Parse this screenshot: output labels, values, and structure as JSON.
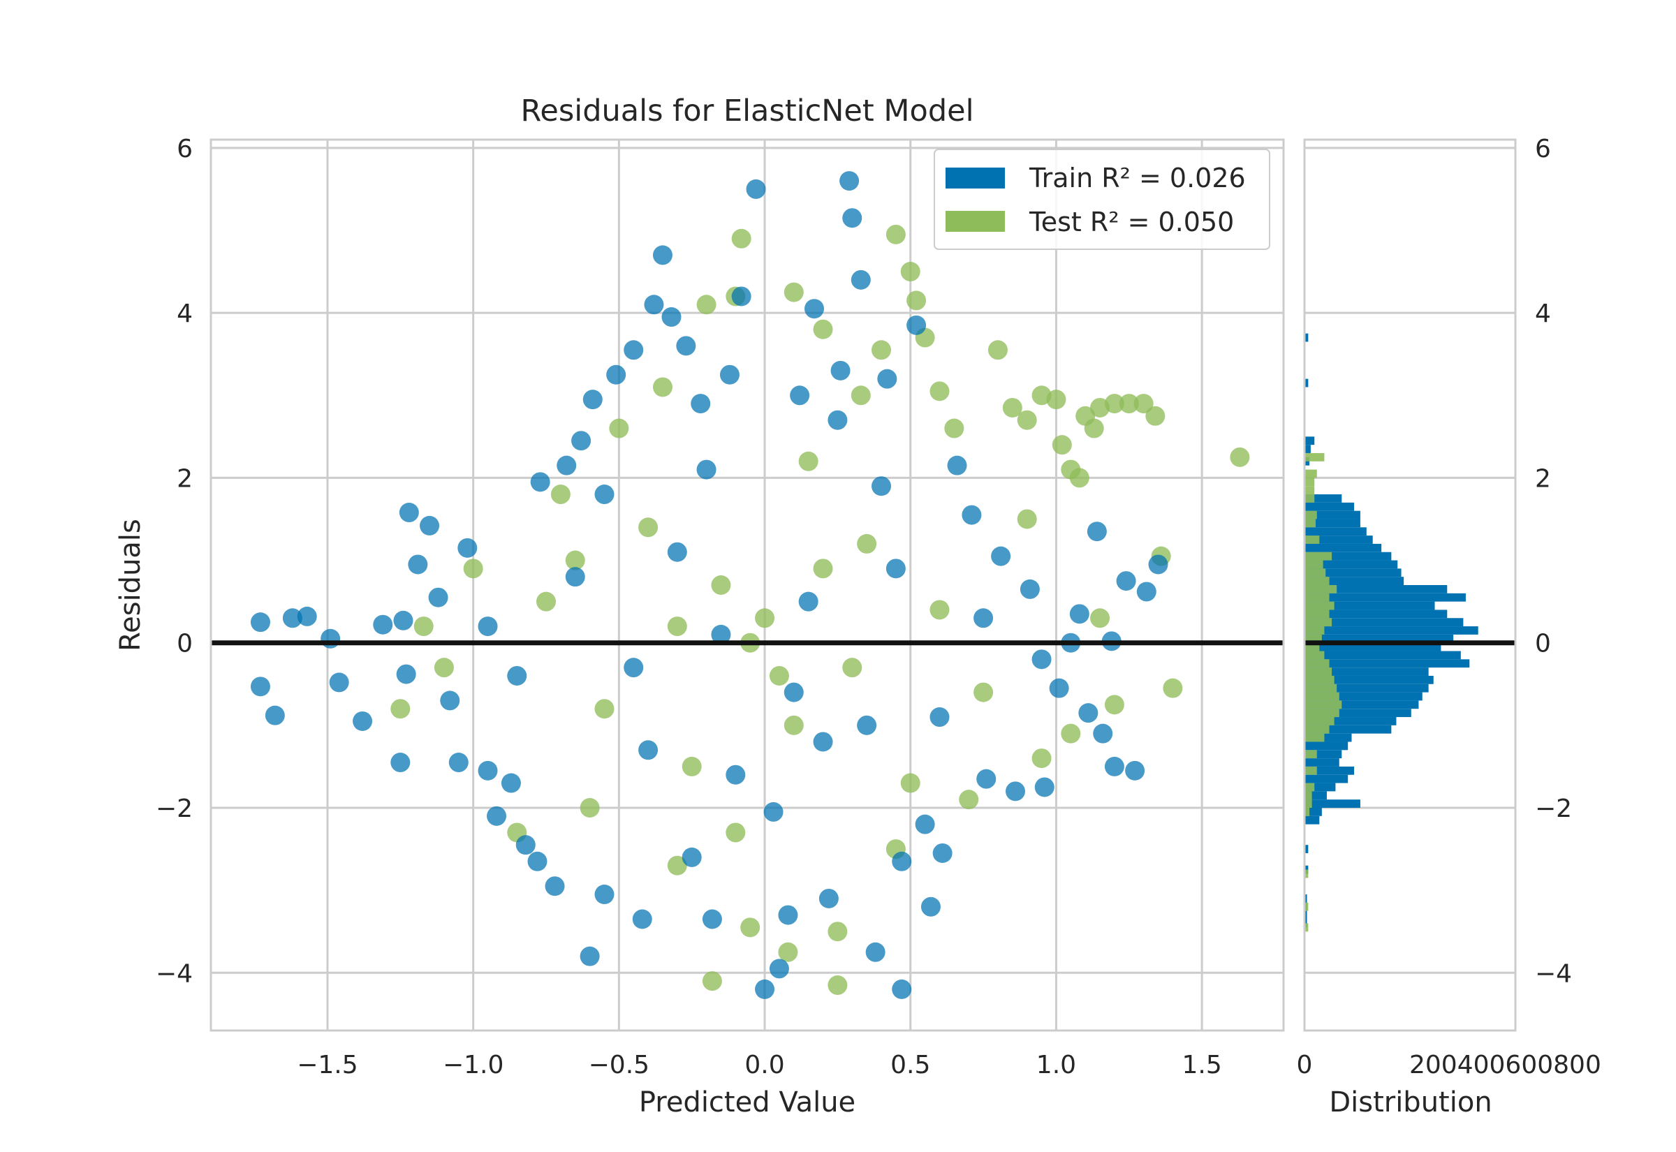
{
  "chart_data": {
    "type": "scatter",
    "title": "Residuals for ElasticNet Model",
    "xlabel": "Predicted Value",
    "ylabel": "Residuals",
    "xlim": [
      -1.9,
      1.78
    ],
    "ylim": [
      -4.7,
      6.1
    ],
    "x_ticks": [
      -1.5,
      -1.0,
      -0.5,
      0.0,
      0.5,
      1.0,
      1.5
    ],
    "x_tick_labels": [
      "−1.5",
      "−1.0",
      "−0.5",
      "0.0",
      "0.5",
      "1.0",
      "1.5"
    ],
    "y_ticks": [
      -4,
      -2,
      0,
      2,
      4,
      6
    ],
    "y_tick_labels": [
      "−4",
      "−2",
      "0",
      "2",
      "4",
      "6"
    ],
    "grid": true,
    "legend_position": "top-right",
    "reference_line_y": 0,
    "series": [
      {
        "name": "Train",
        "legend_label": "Train R² = 0.026",
        "r2": 0.026,
        "color": "#0072b2",
        "points": [
          [
            -1.73,
            0.25
          ],
          [
            -1.62,
            0.3
          ],
          [
            -1.57,
            0.32
          ],
          [
            -1.49,
            0.05
          ],
          [
            -1.46,
            -0.48
          ],
          [
            -1.38,
            -0.95
          ],
          [
            -1.31,
            0.22
          ],
          [
            -1.24,
            0.27
          ],
          [
            -1.73,
            -0.53
          ],
          [
            -1.68,
            -0.88
          ],
          [
            -1.23,
            -0.38
          ],
          [
            -1.25,
            -1.45
          ],
          [
            -1.22,
            1.58
          ],
          [
            -1.19,
            0.95
          ],
          [
            -1.15,
            1.42
          ],
          [
            -1.12,
            0.55
          ],
          [
            -1.08,
            -0.7
          ],
          [
            -1.05,
            -1.45
          ],
          [
            -1.02,
            1.15
          ],
          [
            -0.95,
            -1.55
          ],
          [
            -0.92,
            -2.1
          ],
          [
            -0.87,
            -1.7
          ],
          [
            -0.82,
            -2.45
          ],
          [
            -0.78,
            -2.65
          ],
          [
            -0.77,
            1.95
          ],
          [
            -0.72,
            -2.95
          ],
          [
            -0.68,
            2.15
          ],
          [
            -0.63,
            2.45
          ],
          [
            -0.59,
            2.95
          ],
          [
            -0.55,
            -3.05
          ],
          [
            -0.51,
            3.25
          ],
          [
            -0.45,
            3.55
          ],
          [
            -0.42,
            -3.35
          ],
          [
            -0.38,
            4.1
          ],
          [
            -0.35,
            4.7
          ],
          [
            -0.32,
            3.95
          ],
          [
            -0.27,
            3.6
          ],
          [
            -0.22,
            2.9
          ],
          [
            -0.18,
            -3.35
          ],
          [
            -0.12,
            3.25
          ],
          [
            -0.08,
            4.2
          ],
          [
            -0.03,
            5.5
          ],
          [
            0.03,
            -2.05
          ],
          [
            0.08,
            -3.3
          ],
          [
            0.12,
            3.0
          ],
          [
            0.17,
            4.05
          ],
          [
            0.22,
            -3.1
          ],
          [
            0.26,
            3.3
          ],
          [
            0.29,
            5.6
          ],
          [
            0.3,
            5.15
          ],
          [
            0.33,
            4.4
          ],
          [
            0.38,
            -3.75
          ],
          [
            0.42,
            3.2
          ],
          [
            0.47,
            -2.65
          ],
          [
            0.52,
            3.85
          ],
          [
            0.57,
            -3.2
          ],
          [
            0.61,
            -2.55
          ],
          [
            0.66,
            2.15
          ],
          [
            0.71,
            1.55
          ],
          [
            0.76,
            -1.65
          ],
          [
            0.81,
            1.05
          ],
          [
            0.86,
            -1.8
          ],
          [
            0.91,
            0.65
          ],
          [
            0.96,
            -1.75
          ],
          [
            1.01,
            -0.55
          ],
          [
            1.05,
            0.0
          ],
          [
            1.08,
            0.35
          ],
          [
            1.11,
            -0.85
          ],
          [
            1.16,
            -1.1
          ],
          [
            1.2,
            -1.5
          ],
          [
            1.24,
            0.75
          ],
          [
            1.27,
            -1.55
          ],
          [
            1.31,
            0.62
          ],
          [
            1.35,
            0.95
          ],
          [
            1.14,
            1.35
          ],
          [
            1.19,
            0.02
          ],
          [
            -0.6,
            -3.8
          ],
          [
            -0.2,
            2.1
          ],
          [
            0.05,
            -3.95
          ],
          [
            0.2,
            -1.2
          ],
          [
            -0.3,
            1.1
          ],
          [
            0.35,
            -1.0
          ],
          [
            -0.45,
            -0.3
          ],
          [
            0.15,
            0.5
          ],
          [
            -0.1,
            -1.6
          ],
          [
            0.4,
            1.9
          ],
          [
            -0.65,
            0.8
          ],
          [
            0.6,
            -0.9
          ],
          [
            -0.85,
            -0.4
          ],
          [
            0.75,
            0.3
          ],
          [
            -0.25,
            -2.6
          ],
          [
            0.25,
            2.7
          ],
          [
            -0.55,
            1.8
          ],
          [
            0.55,
            -2.2
          ],
          [
            -0.95,
            0.2
          ],
          [
            0.95,
            -0.2
          ],
          [
            -0.15,
            0.1
          ],
          [
            0.1,
            -0.6
          ],
          [
            -0.4,
            -1.3
          ],
          [
            0.45,
            0.9
          ],
          [
            0.0,
            -4.2
          ],
          [
            0.47,
            -4.2
          ]
        ]
      },
      {
        "name": "Test",
        "legend_label": "Test R² = 0.050",
        "r2": 0.05,
        "color": "#8fbc5a",
        "points": [
          [
            -1.25,
            -0.8
          ],
          [
            -1.17,
            0.2
          ],
          [
            -1.1,
            -0.3
          ],
          [
            -1.0,
            0.9
          ],
          [
            -0.85,
            -2.3
          ],
          [
            -0.7,
            1.8
          ],
          [
            -0.5,
            2.6
          ],
          [
            -0.35,
            3.1
          ],
          [
            -0.2,
            4.1
          ],
          [
            -0.1,
            4.2
          ],
          [
            -0.08,
            4.9
          ],
          [
            0.1,
            4.25
          ],
          [
            0.2,
            3.8
          ],
          [
            0.33,
            3.0
          ],
          [
            0.4,
            3.55
          ],
          [
            0.45,
            4.95
          ],
          [
            0.5,
            4.5
          ],
          [
            0.52,
            4.15
          ],
          [
            0.55,
            3.7
          ],
          [
            0.6,
            3.05
          ],
          [
            0.65,
            2.6
          ],
          [
            0.8,
            3.55
          ],
          [
            0.85,
            2.85
          ],
          [
            0.9,
            2.7
          ],
          [
            0.95,
            3.0
          ],
          [
            1.0,
            2.95
          ],
          [
            1.02,
            2.4
          ],
          [
            1.05,
            2.1
          ],
          [
            1.08,
            2.0
          ],
          [
            1.1,
            2.75
          ],
          [
            1.13,
            2.6
          ],
          [
            1.15,
            2.85
          ],
          [
            1.2,
            2.9
          ],
          [
            1.25,
            2.9
          ],
          [
            1.3,
            2.9
          ],
          [
            1.34,
            2.75
          ],
          [
            1.63,
            2.25
          ],
          [
            1.4,
            -0.55
          ],
          [
            1.36,
            1.05
          ],
          [
            1.2,
            -0.75
          ],
          [
            1.15,
            0.3
          ],
          [
            1.05,
            -1.1
          ],
          [
            0.95,
            -1.4
          ],
          [
            0.9,
            1.5
          ],
          [
            0.7,
            -1.9
          ],
          [
            0.45,
            -2.5
          ],
          [
            0.25,
            -3.5
          ],
          [
            0.08,
            -3.75
          ],
          [
            -0.18,
            -4.1
          ],
          [
            0.25,
            -4.15
          ],
          [
            -0.05,
            -3.45
          ],
          [
            -0.3,
            -2.7
          ],
          [
            -0.6,
            -2.0
          ],
          [
            -0.75,
            0.5
          ],
          [
            0.0,
            0.3
          ],
          [
            0.05,
            -0.4
          ],
          [
            -0.05,
            0.0
          ],
          [
            0.1,
            -1.0
          ],
          [
            -0.15,
            0.7
          ],
          [
            0.3,
            -0.3
          ],
          [
            -0.4,
            1.4
          ],
          [
            0.35,
            1.2
          ],
          [
            -0.25,
            -1.5
          ],
          [
            0.6,
            0.4
          ],
          [
            -0.55,
            -0.8
          ],
          [
            0.75,
            -0.6
          ],
          [
            0.15,
            2.2
          ],
          [
            -0.1,
            -2.3
          ],
          [
            0.5,
            -1.7
          ],
          [
            -0.65,
            1.0
          ],
          [
            0.2,
            0.9
          ],
          [
            -0.3,
            0.2
          ]
        ]
      }
    ],
    "distribution": {
      "xlabel": "Distribution",
      "x_tick_labels": [
        "0",
        "0"
      ],
      "x_tick_overlap_text": "200400600800",
      "y_ticks": [
        -4,
        -2,
        0,
        2,
        4,
        6
      ],
      "y_tick_labels": [
        "−4",
        "−2",
        "0",
        "2",
        "4",
        "6"
      ],
      "bin_width": 0.1,
      "train_bins": [
        [
          3.7,
          3
        ],
        [
          3.15,
          3
        ],
        [
          2.45,
          8
        ],
        [
          2.35,
          5
        ],
        [
          2.2,
          4
        ],
        [
          1.75,
          30
        ],
        [
          1.65,
          40
        ],
        [
          1.55,
          45
        ],
        [
          1.45,
          45
        ],
        [
          1.35,
          50
        ],
        [
          1.25,
          55
        ],
        [
          1.15,
          62
        ],
        [
          1.05,
          70
        ],
        [
          0.95,
          75
        ],
        [
          0.85,
          78
        ],
        [
          0.75,
          80
        ],
        [
          0.65,
          115
        ],
        [
          0.55,
          130
        ],
        [
          0.45,
          105
        ],
        [
          0.35,
          115
        ],
        [
          0.25,
          128
        ],
        [
          0.15,
          140
        ],
        [
          0.05,
          120
        ],
        [
          -0.05,
          110
        ],
        [
          -0.15,
          126
        ],
        [
          -0.25,
          133
        ],
        [
          -0.35,
          100
        ],
        [
          -0.45,
          104
        ],
        [
          -0.55,
          100
        ],
        [
          -0.65,
          95
        ],
        [
          -0.75,
          92
        ],
        [
          -0.85,
          86
        ],
        [
          -0.95,
          74
        ],
        [
          -1.05,
          70
        ],
        [
          -1.15,
          38
        ],
        [
          -1.25,
          35
        ],
        [
          -1.35,
          30
        ],
        [
          -1.45,
          28
        ],
        [
          -1.55,
          40
        ],
        [
          -1.65,
          35
        ],
        [
          -1.75,
          25
        ],
        [
          -1.85,
          18
        ],
        [
          -1.95,
          45
        ],
        [
          -2.05,
          14
        ],
        [
          -2.15,
          12
        ],
        [
          -2.5,
          3
        ],
        [
          -2.75,
          3
        ],
        [
          -3.1,
          2
        ],
        [
          -3.2,
          2
        ],
        [
          -3.3,
          2
        ],
        [
          -3.4,
          2
        ]
      ],
      "test_bins": [
        [
          2.25,
          16
        ],
        [
          2.05,
          10
        ],
        [
          1.95,
          8
        ],
        [
          1.85,
          8
        ],
        [
          1.75,
          8
        ],
        [
          1.55,
          10
        ],
        [
          1.45,
          9
        ],
        [
          1.25,
          12
        ],
        [
          1.05,
          22
        ],
        [
          0.95,
          15
        ],
        [
          0.85,
          17
        ],
        [
          0.75,
          20
        ],
        [
          0.65,
          26
        ],
        [
          0.55,
          20
        ],
        [
          0.45,
          24
        ],
        [
          0.35,
          20
        ],
        [
          0.25,
          22
        ],
        [
          0.15,
          16
        ],
        [
          0.05,
          14
        ],
        [
          -0.05,
          12
        ],
        [
          -0.15,
          16
        ],
        [
          -0.25,
          20
        ],
        [
          -0.35,
          22
        ],
        [
          -0.45,
          24
        ],
        [
          -0.55,
          26
        ],
        [
          -0.65,
          28
        ],
        [
          -0.75,
          30
        ],
        [
          -0.85,
          28
        ],
        [
          -0.95,
          24
        ],
        [
          -1.05,
          20
        ],
        [
          -1.15,
          16
        ],
        [
          -1.35,
          10
        ],
        [
          -1.55,
          10
        ],
        [
          -1.75,
          8
        ],
        [
          -1.85,
          6
        ],
        [
          -1.95,
          6
        ],
        [
          -2.05,
          4
        ],
        [
          -2.8,
          3
        ],
        [
          -3.2,
          3
        ],
        [
          -3.45,
          3
        ]
      ]
    }
  }
}
